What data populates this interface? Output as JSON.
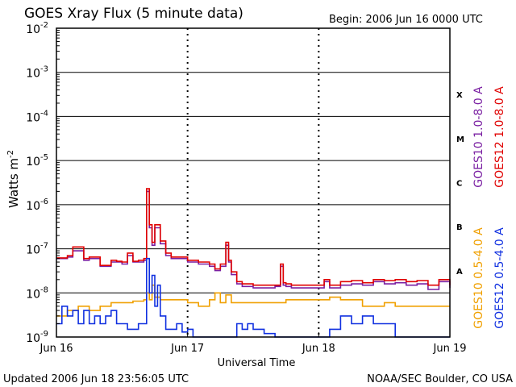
{
  "chart_data": {
    "type": "line",
    "title": "GOES Xray Flux (5 minute data)",
    "begin_label": "Begin:  2006 Jun 16 0000 UTC",
    "ylabel_base": "Watts m",
    "ylabel_sup": "-2",
    "xlabel": "Universal Time",
    "y_scale": "log",
    "ylim": [
      1e-09,
      0.01
    ],
    "y_ticks": [
      {
        "base": "10",
        "exp": "-2"
      },
      {
        "base": "10",
        "exp": "-3"
      },
      {
        "base": "10",
        "exp": "-4"
      },
      {
        "base": "10",
        "exp": "-5"
      },
      {
        "base": "10",
        "exp": "-6"
      },
      {
        "base": "10",
        "exp": "-7"
      },
      {
        "base": "10",
        "exp": "-8"
      },
      {
        "base": "10",
        "exp": "-9"
      }
    ],
    "x_ticks": [
      "Jun 16",
      "Jun 17",
      "Jun 18",
      "Jun 19"
    ],
    "xlim_days": [
      0,
      3
    ],
    "flare_classes": [
      "X",
      "M",
      "C",
      "B",
      "A"
    ],
    "grid": "horizontal at each decade",
    "legend_placement": "right side, vertical",
    "series": [
      {
        "name": "GOES10 1.0-8.0 A",
        "color": "#7a1fa2",
        "x_hours": [
          0,
          2,
          3,
          5,
          6,
          8,
          10,
          11,
          12,
          13,
          14,
          15,
          16,
          16.5,
          17,
          17.5,
          18,
          19,
          20,
          21,
          22,
          24,
          26,
          28,
          29,
          30,
          31,
          31.5,
          32,
          33,
          34,
          36,
          38,
          40,
          41,
          41.5,
          42,
          43,
          44,
          46,
          48,
          49,
          50,
          52,
          54,
          56,
          58,
          60,
          62,
          64,
          66,
          68,
          70,
          72
        ],
        "values": [
          6e-08,
          6.5e-08,
          9e-08,
          5.5e-08,
          6e-08,
          4e-08,
          5e-08,
          5e-08,
          4.5e-08,
          7e-08,
          5e-08,
          5e-08,
          5.5e-08,
          2e-06,
          3e-07,
          1.2e-07,
          3e-07,
          1.3e-07,
          7e-08,
          6e-08,
          6e-08,
          5e-08,
          4.5e-08,
          4e-08,
          3.2e-08,
          4e-08,
          1.2e-07,
          5e-08,
          2.6e-08,
          1.6e-08,
          1.4e-08,
          1.3e-08,
          1.3e-08,
          1.4e-08,
          4e-08,
          1.5e-08,
          1.4e-08,
          1.3e-08,
          1.3e-08,
          1.3e-08,
          1.3e-08,
          1.8e-08,
          1.3e-08,
          1.5e-08,
          1.6e-08,
          1.5e-08,
          1.8e-08,
          1.6e-08,
          1.7e-08,
          1.5e-08,
          1.6e-08,
          1.2e-08,
          1.8e-08,
          1.3e-08
        ]
      },
      {
        "name": "GOES12 1.0-8.0 A",
        "color": "#e00000",
        "x_hours": [
          0,
          2,
          3,
          5,
          6,
          8,
          10,
          11,
          12,
          13,
          14,
          15,
          16,
          16.5,
          17,
          17.5,
          18,
          19,
          20,
          21,
          22,
          24,
          26,
          28,
          29,
          30,
          31,
          31.5,
          32,
          33,
          34,
          36,
          38,
          40,
          41,
          41.5,
          42,
          43,
          44,
          46,
          48,
          49,
          50,
          52,
          54,
          56,
          58,
          60,
          62,
          64,
          66,
          68,
          70,
          72
        ],
        "values": [
          6.2e-08,
          7e-08,
          1.1e-07,
          6e-08,
          6.5e-08,
          4.2e-08,
          5.5e-08,
          5.2e-08,
          5e-08,
          8e-08,
          5.2e-08,
          5.5e-08,
          6e-08,
          2.3e-06,
          3.5e-07,
          1.4e-07,
          3.5e-07,
          1.5e-07,
          8e-08,
          6.5e-08,
          6.5e-08,
          5.5e-08,
          5e-08,
          4.5e-08,
          3.5e-08,
          4.5e-08,
          1.4e-07,
          5.5e-08,
          3e-08,
          1.8e-08,
          1.6e-08,
          1.5e-08,
          1.5e-08,
          1.5e-08,
          4.5e-08,
          1.7e-08,
          1.6e-08,
          1.5e-08,
          1.5e-08,
          1.5e-08,
          1.5e-08,
          2e-08,
          1.5e-08,
          1.8e-08,
          1.9e-08,
          1.7e-08,
          2e-08,
          1.9e-08,
          2e-08,
          1.8e-08,
          1.9e-08,
          1.5e-08,
          2e-08,
          1.5e-08
        ]
      },
      {
        "name": "GOES10 0.5-4.0 A",
        "color": "#f0a000",
        "x_hours": [
          0,
          2,
          4,
          6,
          8,
          10,
          12,
          14,
          16,
          16.5,
          17,
          17.5,
          18,
          19,
          20,
          22,
          24,
          26,
          28,
          29,
          30,
          31,
          32,
          34,
          36,
          38,
          40,
          42,
          44,
          46,
          48,
          50,
          52,
          54,
          56,
          58,
          60,
          62,
          64,
          66,
          68,
          70,
          72
        ],
        "values": [
          3e-09,
          4e-09,
          5e-09,
          4e-09,
          5e-09,
          6e-09,
          6e-09,
          6.5e-09,
          7e-09,
          1e-08,
          7e-09,
          1.5e-08,
          8e-09,
          7e-09,
          7e-09,
          7e-09,
          6e-09,
          5e-09,
          7e-09,
          1e-08,
          6e-09,
          9e-09,
          6e-09,
          6e-09,
          6e-09,
          6e-09,
          6e-09,
          7e-09,
          7e-09,
          7e-09,
          7e-09,
          8e-09,
          7e-09,
          7e-09,
          5e-09,
          5e-09,
          6e-09,
          5e-09,
          5e-09,
          5e-09,
          5e-09,
          5e-09,
          5e-09
        ]
      },
      {
        "name": "GOES12 0.5-4.0 A",
        "color": "#1030e0",
        "x_hours": [
          0,
          1,
          2,
          3,
          4,
          5,
          6,
          7,
          8,
          9,
          10,
          11,
          12,
          13,
          14,
          15,
          16,
          16.5,
          17,
          17.5,
          18,
          18.5,
          19,
          20,
          21,
          22,
          23,
          24,
          25,
          26,
          28,
          29,
          30,
          31,
          32,
          33,
          34,
          35,
          36,
          38,
          40,
          42,
          44,
          45,
          46,
          47,
          48,
          50,
          52,
          54,
          56,
          58,
          60,
          62,
          64,
          66,
          68,
          70,
          71,
          72
        ],
        "values": [
          2e-09,
          5e-09,
          3e-09,
          4e-09,
          2e-09,
          4e-09,
          2e-09,
          3e-09,
          2e-09,
          3e-09,
          4e-09,
          2e-09,
          2e-09,
          1.5e-09,
          1.5e-09,
          2e-09,
          2e-09,
          6e-08,
          1e-08,
          2.5e-08,
          5e-09,
          1.5e-08,
          3e-09,
          1.5e-09,
          1.5e-09,
          2e-09,
          1.3e-09,
          1.5e-09,
          1e-09,
          1e-09,
          1e-09,
          1e-09,
          1e-09,
          1e-09,
          1e-09,
          2e-09,
          1.5e-09,
          2e-09,
          1.5e-09,
          1.2e-09,
          1e-09,
          1e-09,
          1e-09,
          1e-09,
          1e-09,
          1e-09,
          1e-09,
          1.5e-09,
          3e-09,
          2e-09,
          3e-09,
          2e-09,
          2e-09,
          1e-09,
          1e-09,
          1e-09,
          1e-09,
          1e-09,
          1e-09,
          1e-09
        ]
      }
    ]
  },
  "footer": {
    "updated": "Updated 2006 Jun 18 23:56:05 UTC",
    "credit": "NOAA/SEC Boulder, CO USA"
  }
}
